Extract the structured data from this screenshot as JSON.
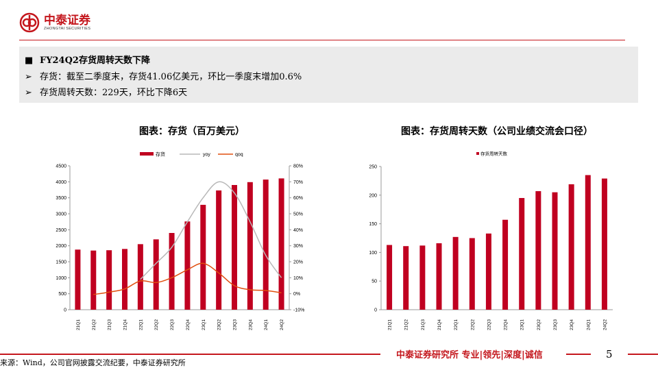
{
  "header": {
    "logo_cn": "中泰证券",
    "logo_en": "ZHONGTAI SECURITIES",
    "brand_color": "#c4161c"
  },
  "summary": {
    "title": "FY24Q2存货周转天数下降",
    "bullet1": "存货：截至二季度末，存货41.06亿美元，环比一季度末增加0.6%",
    "bullet2": "存货周转天数：229天，环比下降6天"
  },
  "chart_data": [
    {
      "type": "bar",
      "title": "图表：存货（百万美元）",
      "categories": [
        "21Q1",
        "21Q2",
        "21Q3",
        "21Q4",
        "22Q1",
        "22Q2",
        "22Q3",
        "22Q4",
        "23Q1",
        "23Q2",
        "23Q3",
        "23Q4",
        "24Q1",
        "24Q2"
      ],
      "series": [
        {
          "name": "存货",
          "type": "bar",
          "axis": "left",
          "color": "#c00020",
          "values": [
            1880,
            1850,
            1860,
            1900,
            2050,
            2200,
            2400,
            2760,
            3280,
            3730,
            3900,
            3990,
            4070,
            4106
          ]
        },
        {
          "name": "yoy",
          "type": "line",
          "axis": "right",
          "color": "#b8b8b8",
          "values": [
            null,
            null,
            null,
            null,
            9,
            19,
            29,
            45,
            60,
            70,
            63,
            45,
            24,
            10
          ]
        },
        {
          "name": "qoq",
          "type": "line",
          "axis": "right",
          "color": "#e04e0e",
          "values": [
            null,
            -0.5,
            1,
            3,
            8,
            7,
            10,
            15,
            19,
            13,
            5,
            2.5,
            2,
            0.6
          ]
        }
      ],
      "ylim": [
        0,
        4500
      ],
      "yticks": [
        "0",
        "500",
        "1000",
        "1500",
        "2000",
        "2500",
        "3000",
        "3500",
        "4000",
        "4500"
      ],
      "y2lim": [
        -10,
        80
      ],
      "y2ticks": [
        "-10%",
        "0%",
        "10%",
        "20%",
        "30%",
        "40%",
        "50%",
        "60%",
        "70%",
        "80%"
      ],
      "legend_position": "top"
    },
    {
      "type": "bar",
      "title": "图表：存货周转天数（公司业绩交流会口径）",
      "categories": [
        "21Q1",
        "21Q2",
        "21Q3",
        "21Q4",
        "22Q1",
        "22Q2",
        "22Q3",
        "22Q4",
        "23Q1",
        "23Q2",
        "23Q3",
        "23Q4",
        "24Q1",
        "24Q2"
      ],
      "series": [
        {
          "name": "存货周转天数",
          "color": "#c00020",
          "values": [
            113,
            111,
            112,
            116,
            127,
            125,
            133,
            157,
            195,
            207,
            205,
            219,
            235,
            229
          ]
        }
      ],
      "ylim": [
        0,
        250
      ],
      "yticks": [
        "0",
        "50",
        "100",
        "150",
        "200",
        "250"
      ],
      "legend_position": "top"
    }
  ],
  "footer": {
    "tagline": "中泰证券研究所 专业|领先|深度|诚信",
    "page": "5",
    "source": "来源：Wind，公司官网披露交流纪要，中泰证券研究所"
  }
}
